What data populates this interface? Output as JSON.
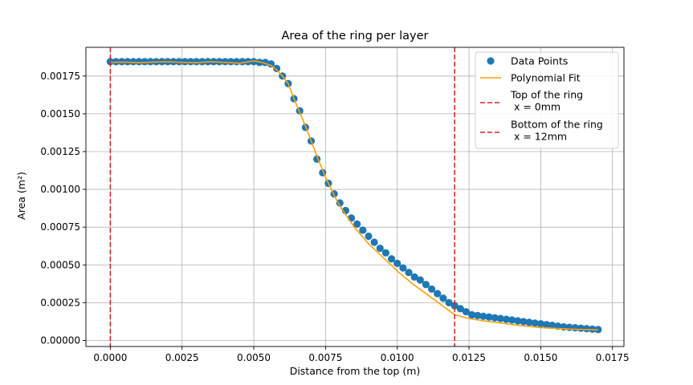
{
  "chart_data": {
    "type": "scatter",
    "title": "Area of the ring per layer",
    "xlabel": "Distance from the top (m)",
    "ylabel": "Area (m²)",
    "xlim": [
      -0.00085,
      0.0179
    ],
    "ylim": [
      -4e-05,
      0.00194
    ],
    "xticks": [
      0.0,
      0.0025,
      0.005,
      0.0075,
      0.01,
      0.0125,
      0.015,
      0.0175
    ],
    "xtick_labels": [
      "0.0000",
      "0.0025",
      "0.0050",
      "0.0075",
      "0.0100",
      "0.0125",
      "0.0150",
      "0.0175"
    ],
    "yticks": [
      0.0,
      0.00025,
      0.0005,
      0.00075,
      0.001,
      0.00125,
      0.0015,
      0.00175
    ],
    "ytick_labels": [
      "0.00000",
      "0.00025",
      "0.00050",
      "0.00075",
      "0.00100",
      "0.00125",
      "0.00150",
      "0.00175"
    ],
    "grid": true,
    "legend_position": "top-right",
    "colors": {
      "points": "#1f77b4",
      "fit": "#ff9f0a",
      "vline": "#d62728"
    },
    "series": [
      {
        "name": "Data Points",
        "kind": "scatter",
        "x": [
          0.0,
          0.0002,
          0.0004,
          0.0006,
          0.0008,
          0.001,
          0.0012,
          0.0014,
          0.0016,
          0.0018,
          0.002,
          0.0022,
          0.0024,
          0.0026,
          0.0028,
          0.003,
          0.0032,
          0.0034,
          0.0036,
          0.0038,
          0.004,
          0.0042,
          0.0044,
          0.0046,
          0.0048,
          0.005,
          0.0052,
          0.0054,
          0.0056,
          0.0058,
          0.006,
          0.0062,
          0.0064,
          0.0066,
          0.0068,
          0.007,
          0.0072,
          0.0074,
          0.0076,
          0.0078,
          0.008,
          0.0082,
          0.0084,
          0.0086,
          0.0088,
          0.009,
          0.0092,
          0.0094,
          0.0096,
          0.0098,
          0.01,
          0.0102,
          0.0104,
          0.0106,
          0.0108,
          0.011,
          0.0112,
          0.0114,
          0.0116,
          0.0118,
          0.012,
          0.0122,
          0.0124,
          0.0126,
          0.0128,
          0.013,
          0.0132,
          0.0134,
          0.0136,
          0.0138,
          0.014,
          0.0142,
          0.0144,
          0.0146,
          0.0148,
          0.015,
          0.0152,
          0.0154,
          0.0156,
          0.0158,
          0.016,
          0.0162,
          0.0164,
          0.0166,
          0.0168,
          0.017
        ],
        "y": [
          0.001845,
          0.001845,
          0.001845,
          0.001845,
          0.001845,
          0.001845,
          0.001845,
          0.001845,
          0.001845,
          0.001845,
          0.001845,
          0.001845,
          0.001845,
          0.001845,
          0.001845,
          0.001845,
          0.001845,
          0.001845,
          0.001845,
          0.001845,
          0.001845,
          0.001845,
          0.001845,
          0.001845,
          0.001845,
          0.001845,
          0.00184,
          0.00184,
          0.00183,
          0.0018,
          0.00175,
          0.0017,
          0.0016,
          0.00152,
          0.00141,
          0.00132,
          0.0012,
          0.00111,
          0.00104,
          0.00097,
          0.00091,
          0.00086,
          0.00081,
          0.00077,
          0.00073,
          0.00069,
          0.00065,
          0.00061,
          0.00058,
          0.00054,
          0.00051,
          0.00048,
          0.00045,
          0.00042,
          0.0004,
          0.00037,
          0.00034,
          0.00031,
          0.00028,
          0.00025,
          0.00023,
          0.00021,
          0.00019,
          0.00017,
          0.000165,
          0.00016,
          0.000155,
          0.00015,
          0.000145,
          0.00014,
          0.000135,
          0.00013,
          0.000125,
          0.00012,
          0.000115,
          0.00011,
          0.000105,
          0.0001,
          9.5e-05,
          9e-05,
          8.7e-05,
          8.4e-05,
          8.1e-05,
          7.8e-05,
          7.5e-05,
          7.2e-05
        ]
      },
      {
        "name": "Polynomial Fit",
        "kind": "line",
        "x": [
          0.0,
          0.0005,
          0.001,
          0.0015,
          0.002,
          0.0025,
          0.003,
          0.0035,
          0.004,
          0.0045,
          0.005,
          0.0053,
          0.0056,
          0.0058,
          0.006,
          0.0062,
          0.0064,
          0.0066,
          0.0068,
          0.007,
          0.0072,
          0.0075,
          0.0078,
          0.008,
          0.0085,
          0.009,
          0.0095,
          0.01,
          0.0105,
          0.011,
          0.0115,
          0.012,
          0.0125,
          0.013,
          0.014,
          0.015,
          0.016,
          0.017
        ],
        "y": [
          0.00184,
          0.001842,
          0.001838,
          0.001842,
          0.001845,
          0.00184,
          0.001838,
          0.001845,
          0.00184,
          0.001835,
          0.00185,
          0.00184,
          0.00182,
          0.00179,
          0.00175,
          0.0017,
          0.0016,
          0.00151,
          0.00142,
          0.00132,
          0.00122,
          0.00108,
          0.00096,
          0.00089,
          0.00075,
          0.00064,
          0.00055,
          0.00046,
          0.00038,
          0.00031,
          0.00024,
          0.00017,
          0.000145,
          0.00013,
          0.000105,
          8.5e-05,
          7.5e-05,
          7e-05
        ]
      },
      {
        "name": "Top of the ring\n x = 0mm",
        "kind": "vline",
        "x": 0.0
      },
      {
        "name": "Bottom of the ring\n x = 12mm",
        "kind": "vline",
        "x": 0.012
      }
    ]
  }
}
